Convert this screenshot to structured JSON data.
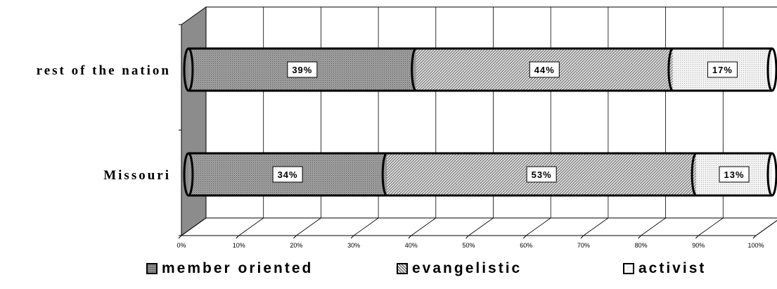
{
  "chart_data": {
    "type": "bar",
    "orientation": "horizontal",
    "stacked": "100%",
    "three_d": true,
    "categories": [
      "rest of the nation",
      "Missouri"
    ],
    "series": [
      {
        "name": "member oriented",
        "values": [
          39,
          34
        ],
        "labels": [
          "39%",
          "34%"
        ],
        "pattern": "dots",
        "color": "#a8a8a8"
      },
      {
        "name": "evangelistic",
        "values": [
          44,
          53
        ],
        "labels": [
          "44%",
          "53%"
        ],
        "pattern": "diagonal",
        "color": "#dcdcdc"
      },
      {
        "name": "activist",
        "values": [
          17,
          13
        ],
        "labels": [
          "17%",
          "13%"
        ],
        "pattern": "fine-dots",
        "color": "#f0f0f0"
      }
    ],
    "x_ticks": [
      "0%",
      "10%",
      "20%",
      "30%",
      "40%",
      "50%",
      "60%",
      "70%",
      "80%",
      "90%",
      "100%"
    ],
    "xlim": [
      0,
      100
    ],
    "grid": true,
    "legend_position": "bottom",
    "title": "",
    "xlabel": "",
    "ylabel": ""
  }
}
